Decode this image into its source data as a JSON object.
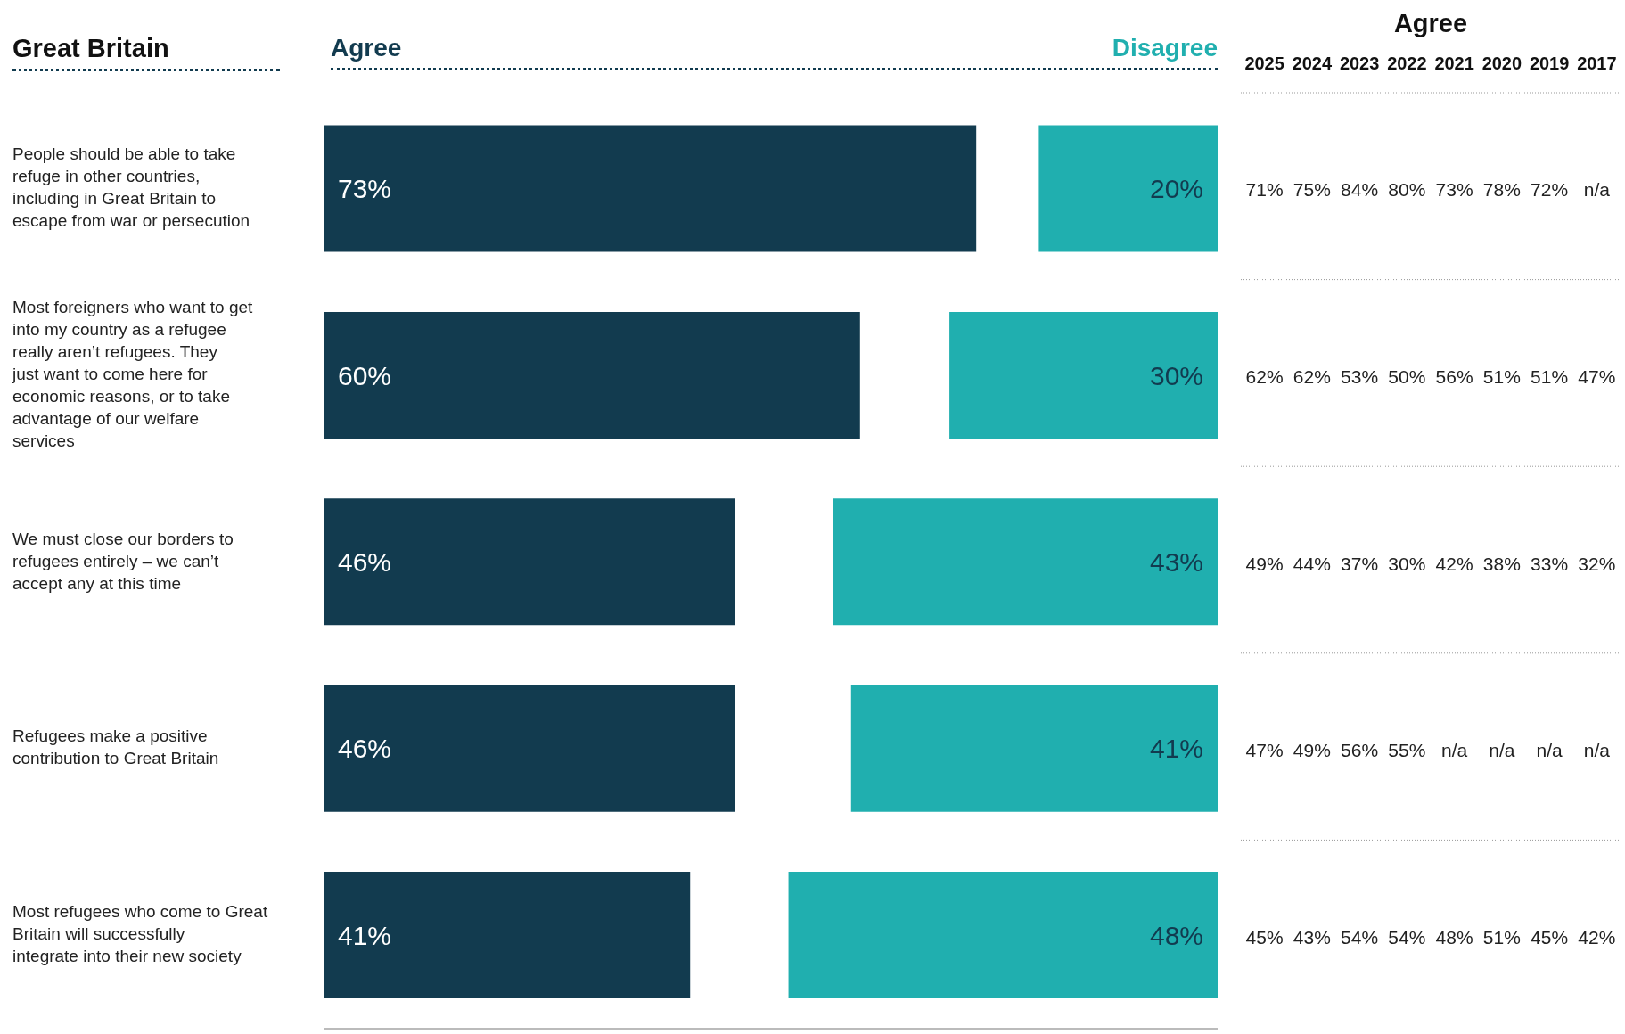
{
  "chart_data": [
    {
      "type": "bar",
      "orientation": "horizontal",
      "title": "Great Britain",
      "categories": [
        "People should be able to take refuge in other countries, including in Great Britain to escape from war or persecution",
        "Most foreigners who want to get into my country as a refugee really aren’t refugees. They just want to come here for economic reasons, or to take advantage of our welfare services",
        "We must close our borders to refugees entirely – we can’t accept any at this time",
        "Refugees make a positive contribution to Great Britain",
        "Most refugees who come to Great Britain will successfully integrate into their new society"
      ],
      "xlim": [
        0,
        100
      ],
      "tick_labels": "y",
      "legend": "top",
      "series": [
        {
          "name": "Agree",
          "color": "#123b4f",
          "values": [
            73,
            60,
            46,
            46,
            41
          ],
          "value_labels": [
            "73%",
            "60%",
            "46%",
            "46%",
            "41%"
          ]
        }
      ]
    },
    {
      "type": "bar",
      "orientation": "horizontal",
      "categories": [
        null,
        null,
        null,
        null,
        null
      ],
      "xlim": [
        100,
        0
      ],
      "tick_labels": false,
      "legend": "top right",
      "series": [
        {
          "name": "Disagree",
          "color": "#20afaf",
          "values": [
            20,
            30,
            43,
            41,
            48
          ],
          "value_labels": [
            "20%",
            "30%",
            "43%",
            "41%",
            "48%"
          ]
        }
      ]
    },
    {
      "type": "heatmap",
      "title": "Agree",
      "categories": [
        "2025",
        "2024",
        "2023",
        "2022",
        "2021",
        "2020",
        "2019",
        "2017"
      ],
      "y_categories": [
        null,
        null,
        null,
        null,
        null
      ],
      "tick_labels": "x",
      "cells": [
        [
          71,
          75,
          84,
          80,
          73,
          78,
          72,
          null
        ],
        [
          62,
          62,
          53,
          50,
          56,
          51,
          51,
          47
        ],
        [
          49,
          44,
          37,
          30,
          42,
          38,
          33,
          32
        ],
        [
          47,
          49,
          56,
          55,
          null,
          null,
          null,
          null
        ],
        [
          45,
          43,
          54,
          54,
          48,
          51,
          45,
          42
        ]
      ],
      "cell_labels": [
        [
          "71%",
          "75%",
          "84%",
          "80%",
          "73%",
          "78%",
          "72%",
          "n/a"
        ],
        [
          "62%",
          "62%",
          "53%",
          "50%",
          "56%",
          "51%",
          "51%",
          "47%"
        ],
        [
          "49%",
          "44%",
          "37%",
          "30%",
          "42%",
          "38%",
          "33%",
          "32%"
        ],
        [
          "47%",
          "49%",
          "56%",
          "55%",
          "n/a",
          "n/a",
          "n/a",
          "n/a"
        ],
        [
          "45%",
          "43%",
          "54%",
          "54%",
          "48%",
          "51%",
          "45%",
          "42%"
        ]
      ]
    }
  ]
}
